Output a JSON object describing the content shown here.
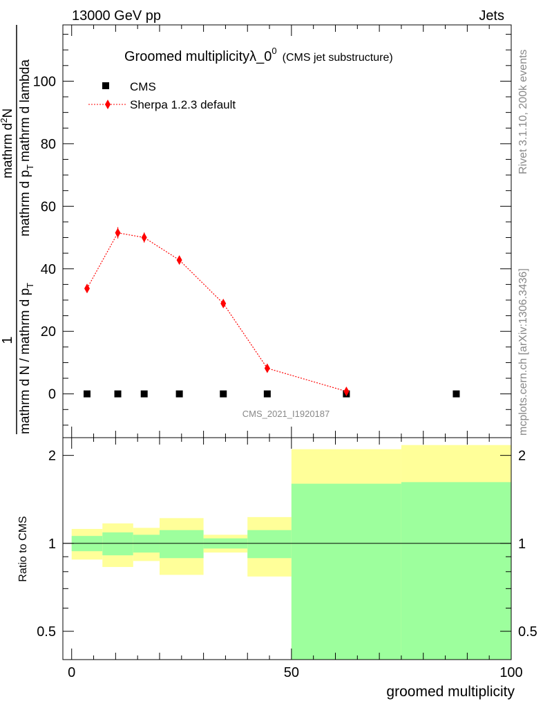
{
  "header": {
    "left": "13000 GeV pp",
    "right": "Jets"
  },
  "side_labels": {
    "rivet": "Rivet 3.1.10,  200k events",
    "mcplots": "mcplots.cern.ch [arXiv:1306.3436]"
  },
  "chart_data": [
    {
      "type": "scatter",
      "title": "Groomed multiplicityλ_0",
      "title_superscript": "0",
      "title_suffix": "(CMS jet substructure)",
      "ylabel_numerator": "1",
      "ylabel_denominator": "mathrm d N / mathrm d p",
      "ylabel_right_numerator": "mathrm d",
      "ylabel_right_denominator": "mathrm d p",
      "ylabel_n": "N",
      "ylabel_tail": "mathrm d lambda",
      "ylabel_sub_t": "T",
      "ylabel_right_sup": "2",
      "watermark": "CMS_2021_I1920187",
      "xlim": [
        -2,
        100
      ],
      "ylim": [
        -14,
        118
      ],
      "yticks": [
        0,
        20,
        40,
        60,
        80,
        100
      ],
      "legend_position": "top-left",
      "series": [
        {
          "name": "CMS",
          "color": "#000000",
          "marker": "square",
          "points": [
            {
              "x": 3.5,
              "y": 0
            },
            {
              "x": 10.5,
              "y": 0
            },
            {
              "x": 16.5,
              "y": 0
            },
            {
              "x": 24.5,
              "y": 0
            },
            {
              "x": 34.5,
              "y": 0
            },
            {
              "x": 44.5,
              "y": 0
            },
            {
              "x": 62.5,
              "y": 0
            },
            {
              "x": 87.5,
              "y": 0
            }
          ]
        },
        {
          "name": "Sherpa 1.2.3 default",
          "color": "#ff0000",
          "marker": "diamond",
          "line": "dotted",
          "points": [
            {
              "x": 3.5,
              "y": 33.7,
              "err": 1.3
            },
            {
              "x": 10.5,
              "y": 51.5,
              "err": 1.8
            },
            {
              "x": 16.5,
              "y": 50.0,
              "err": 1.6
            },
            {
              "x": 24.5,
              "y": 42.8,
              "err": 1.3
            },
            {
              "x": 34.5,
              "y": 28.9,
              "err": 1.0
            },
            {
              "x": 44.5,
              "y": 8.2,
              "err": 0.5
            },
            {
              "x": 62.5,
              "y": 0.8,
              "err": 0.3
            }
          ]
        }
      ]
    },
    {
      "type": "band",
      "ylabel": "Ratio to CMS",
      "xlabel": "groomed multiplicity",
      "xticks": [
        0,
        50,
        100
      ],
      "yscale": "log",
      "ylim": [
        0.4,
        2.3
      ],
      "yticks": [
        0.5,
        1,
        2
      ],
      "reference": 1,
      "bins": [
        {
          "x0": 0,
          "x1": 7,
          "green": [
            0.94,
            1.06
          ],
          "yellow": [
            0.88,
            1.12
          ]
        },
        {
          "x0": 7,
          "x1": 14,
          "green": [
            0.91,
            1.09
          ],
          "yellow": [
            0.83,
            1.17
          ]
        },
        {
          "x0": 14,
          "x1": 20,
          "green": [
            0.93,
            1.07
          ],
          "yellow": [
            0.87,
            1.13
          ]
        },
        {
          "x0": 20,
          "x1": 30,
          "green": [
            0.89,
            1.11
          ],
          "yellow": [
            0.78,
            1.22
          ]
        },
        {
          "x0": 30,
          "x1": 40,
          "green": [
            0.96,
            1.04
          ],
          "yellow": [
            0.93,
            1.07
          ]
        },
        {
          "x0": 40,
          "x1": 50,
          "green": [
            0.89,
            1.11
          ],
          "yellow": [
            0.77,
            1.23
          ]
        },
        {
          "x0": 50,
          "x1": 75,
          "green": [
            0.3,
            1.6
          ],
          "yellow": [
            0.3,
            2.1
          ]
        },
        {
          "x0": 75,
          "x1": 100,
          "green": [
            0.3,
            1.62
          ],
          "yellow": [
            0.3,
            2.17
          ]
        }
      ],
      "colors": {
        "green": "#9dff9d",
        "yellow": "#ffff99"
      }
    }
  ]
}
